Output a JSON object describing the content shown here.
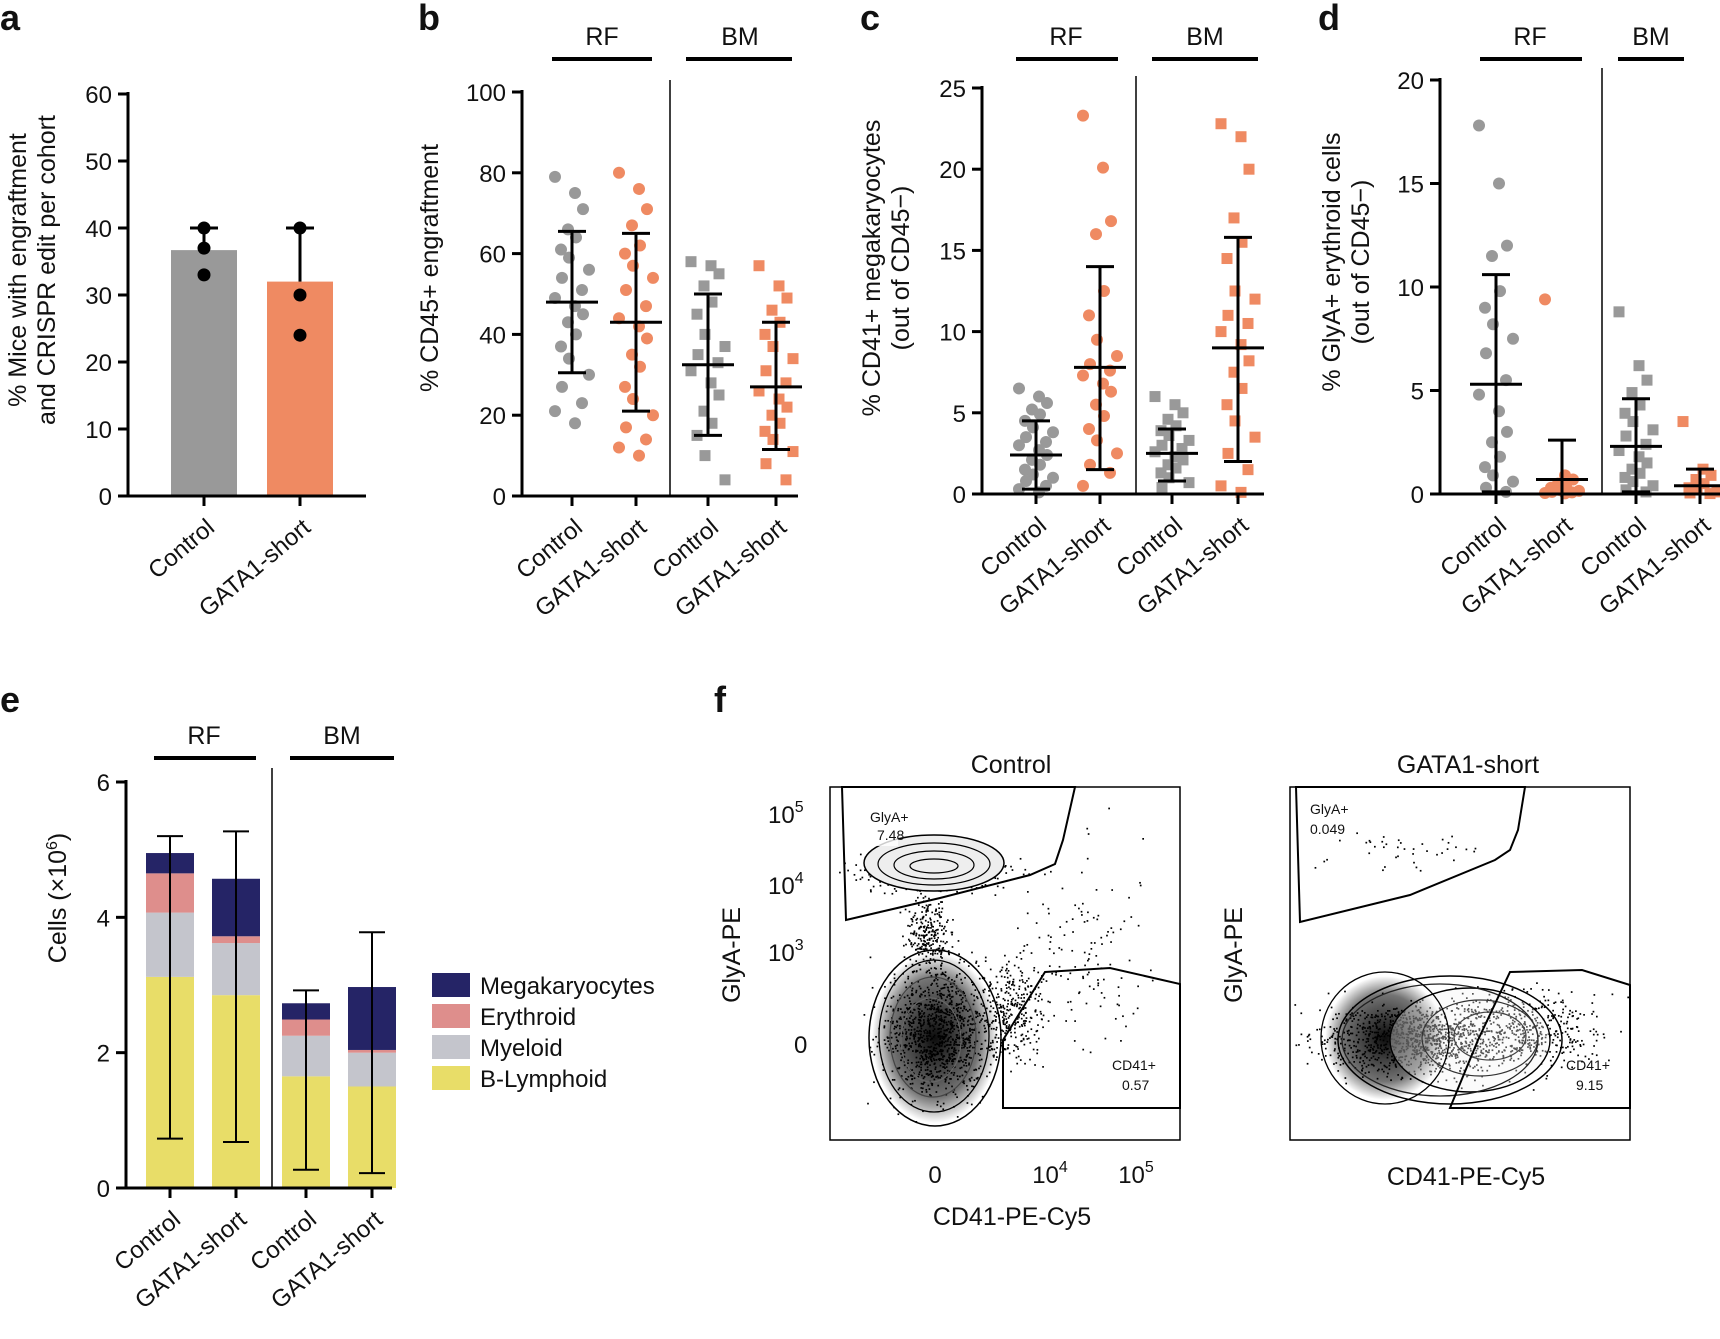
{
  "panels": {
    "a": {
      "label": "a",
      "ylabel_line1": "% Mice with engraftment",
      "ylabel_line2": "and CRISPR edit per cohort"
    },
    "b": {
      "label": "b",
      "ylabel": "% CD45+ engraftment"
    },
    "c": {
      "label": "c",
      "ylabel_line1": "% CD41+ megakaryocytes",
      "ylabel_line2": "(out of CD45−)"
    },
    "d": {
      "label": "d",
      "ylabel_line1": "% GlyA+ erythroid cells",
      "ylabel_line2": "(out of CD45−)"
    },
    "e": {
      "label": "e",
      "ylabel": "Cells (×10",
      "ylabel_sup": "6",
      "ylabel_end": ")"
    },
    "f": {
      "label": "f"
    }
  },
  "groups": {
    "rf": "RF",
    "bm": "BM"
  },
  "colors": {
    "control": "#999999",
    "gata1": "#ef8a62",
    "megakaryocytes": "#252466",
    "erythroid": "#de8e8c",
    "myeloid": "#c4c5cc",
    "b_lymphoid": "#e8dd68"
  },
  "chart_data": [
    {
      "panel": "a",
      "type": "bar",
      "categories": [
        "Control",
        "GATA1-short"
      ],
      "values": [
        36.7,
        32
      ],
      "error_upper": [
        40,
        40
      ],
      "points": [
        [
          40,
          37,
          33
        ],
        [
          40,
          30,
          24
        ]
      ],
      "ylim": [
        0,
        60
      ],
      "yticks": [
        0,
        10,
        20,
        30,
        40,
        50,
        60
      ],
      "ylabel": "% Mice with engraftment and CRISPR edit per cohort"
    },
    {
      "panel": "b",
      "type": "scatter",
      "categories": [
        "Control",
        "GATA1-short",
        "Control",
        "GATA1-short"
      ],
      "groups": [
        "RF",
        "RF",
        "BM",
        "BM"
      ],
      "means": [
        48,
        43,
        32.5,
        27
      ],
      "sd_low": [
        30.5,
        21,
        15,
        11.5
      ],
      "sd_high": [
        65.5,
        65,
        50,
        43
      ],
      "points": [
        [
          79,
          75,
          71,
          66,
          64,
          61,
          59,
          56,
          54,
          51,
          49,
          47,
          45,
          43,
          40,
          37,
          34,
          30,
          27,
          23,
          21,
          18
        ],
        [
          80,
          76,
          71,
          67,
          62,
          60,
          57,
          54,
          51,
          47,
          44,
          42,
          39,
          35,
          32,
          27,
          24,
          20,
          17,
          14,
          12,
          10
        ],
        [
          58,
          57,
          55,
          52,
          48,
          45,
          40,
          37,
          35,
          33,
          31,
          28,
          25,
          21,
          18,
          15,
          10,
          4
        ],
        [
          57,
          52,
          49,
          46,
          43,
          40,
          37,
          34,
          31,
          28,
          26,
          24,
          22,
          20,
          18,
          16,
          14,
          11,
          8,
          4
        ]
      ],
      "ylim": [
        0,
        100
      ],
      "yticks": [
        0,
        20,
        40,
        60,
        80,
        100
      ],
      "ylabel": "% CD45+ engraftment"
    },
    {
      "panel": "c",
      "type": "scatter",
      "categories": [
        "Control",
        "GATA1-short",
        "Control",
        "GATA1-short"
      ],
      "groups": [
        "RF",
        "RF",
        "BM",
        "BM"
      ],
      "means": [
        2.4,
        7.8,
        2.5,
        9
      ],
      "sd_low": [
        0.3,
        1.5,
        0.8,
        2
      ],
      "sd_high": [
        4.5,
        14,
        4,
        15.8
      ],
      "points": [
        [
          6.5,
          6,
          5.6,
          5.2,
          4.9,
          4.5,
          4.1,
          3.8,
          3.5,
          3.2,
          3,
          2.7,
          2.4,
          2.1,
          1.8,
          1.5,
          1.2,
          1,
          0.8,
          0.5,
          0.3,
          0.1
        ],
        [
          23.3,
          20.1,
          16.8,
          16,
          12.5,
          11,
          9.5,
          8.5,
          8,
          7.6,
          7.3,
          6.8,
          6.3,
          5.5,
          4.8,
          4,
          3.3,
          2.5,
          1.8,
          1.3,
          0.5
        ],
        [
          6,
          5.5,
          5,
          4.6,
          4.2,
          3.9,
          3.6,
          3.3,
          3,
          2.8,
          2.6,
          2.3,
          2.1,
          1.8,
          1.6,
          1.3,
          1,
          0.7,
          0.4
        ],
        [
          22.8,
          22,
          20,
          17,
          15.5,
          14.5,
          12.5,
          12,
          11,
          10.5,
          10,
          9.2,
          8.2,
          7.5,
          6.5,
          5.5,
          4.5,
          3.5,
          2.5,
          1.5,
          0.5,
          0.1
        ]
      ],
      "ylim": [
        0,
        25
      ],
      "yticks": [
        0,
        5,
        10,
        15,
        20,
        25
      ],
      "ylabel": "% CD41+ megakaryocytes (out of CD45−)"
    },
    {
      "panel": "d",
      "type": "scatter",
      "categories": [
        "Control",
        "GATA1-short",
        "Control",
        "GATA1-short"
      ],
      "groups": [
        "RF",
        "RF",
        "BM",
        "BM"
      ],
      "means": [
        5.3,
        0.7,
        2.3,
        0.4
      ],
      "sd_low": [
        0.1,
        0,
        0.1,
        0
      ],
      "sd_high": [
        10.6,
        2.6,
        4.6,
        1.2
      ],
      "points": [
        [
          17.8,
          15,
          12,
          11.5,
          9.8,
          9,
          8.2,
          7.5,
          6.8,
          5.5,
          4.8,
          4,
          3,
          2.5,
          1.8,
          1.3,
          0.9,
          0.6,
          0.3,
          0.1
        ],
        [
          9.4,
          0.9,
          0.7,
          0.5,
          0.4,
          0.3,
          0.2,
          0.15,
          0.1,
          0.08,
          0.05,
          0.03
        ],
        [
          8.8,
          6.2,
          5.5,
          4.9,
          4.3,
          3.9,
          3.5,
          3.1,
          2.8,
          2.4,
          2.1,
          1.8,
          1.5,
          1.2,
          1,
          0.8,
          0.6,
          0.4,
          0.2,
          0.1
        ],
        [
          3.5,
          1.2,
          0.9,
          0.7,
          0.5,
          0.3,
          0.2,
          0.1,
          0.05,
          0.02
        ]
      ],
      "ylim": [
        0,
        20
      ],
      "yticks": [
        0,
        5,
        10,
        15,
        20
      ],
      "ylabel": "% GlyA+ erythroid cells (out of CD45−)"
    },
    {
      "panel": "e",
      "type": "bar",
      "stacked": true,
      "categories": [
        "Control",
        "GATA1-short",
        "Control",
        "GATA1-short"
      ],
      "groups": [
        "RF",
        "RF",
        "BM",
        "BM"
      ],
      "series": [
        {
          "name": "B-Lymphoid",
          "values": [
            3.12,
            2.85,
            1.65,
            1.5
          ]
        },
        {
          "name": "Myeloid",
          "values": [
            0.95,
            0.77,
            0.6,
            0.5
          ]
        },
        {
          "name": "Erythroid",
          "values": [
            0.58,
            0.1,
            0.24,
            0.04
          ]
        },
        {
          "name": "Megakaryocytes",
          "values": [
            0.3,
            0.85,
            0.24,
            0.93
          ]
        }
      ],
      "legend_order": [
        "Megakaryocytes",
        "Erythroid",
        "Myeloid",
        "B-Lymphoid"
      ],
      "error_low": [
        0.73,
        0.68,
        0.27,
        0.22
      ],
      "error_high": [
        5.2,
        5.27,
        2.92,
        3.78
      ],
      "error_center": [
        4.95,
        4.57,
        2.73,
        2.97
      ],
      "ylim": [
        0,
        6
      ],
      "yticks": [
        0,
        2,
        4,
        6
      ],
      "ylabel": "Cells (×10^6)"
    },
    {
      "panel": "f",
      "type": "scatter",
      "subplots": [
        {
          "title": "Control",
          "gates": [
            {
              "name": "GlyA+",
              "percent": "7.48"
            },
            {
              "name": "CD41+",
              "percent": "0.57"
            }
          ]
        },
        {
          "title": "GATA1-short",
          "gates": [
            {
              "name": "GlyA+",
              "percent": "0.049"
            },
            {
              "name": "CD41+",
              "percent": "9.15"
            }
          ]
        }
      ],
      "xlabel": "CD41-PE-Cy5",
      "ylabel": "GlyA-PE",
      "xticks": [
        "0",
        "10^4",
        "10^5"
      ],
      "yticks": [
        "0",
        "10^3",
        "10^4",
        "10^5"
      ]
    }
  ],
  "flow": {
    "control": {
      "title": "Control",
      "gly_name": "GlyA+",
      "gly_pct": "7.48",
      "cd_name": "CD41+",
      "cd_pct": "0.57"
    },
    "gata1": {
      "title": "GATA1-short",
      "gly_name": "GlyA+",
      "gly_pct": "0.049",
      "cd_name": "CD41+",
      "cd_pct": "9.15"
    },
    "xlabel": "CD41-PE-Cy5",
    "ylabel": "GlyA-PE",
    "xtick_zero": "0",
    "x10": "10",
    "ytick_zero": "0",
    "exp3": "3",
    "exp4": "4",
    "exp5": "5"
  }
}
